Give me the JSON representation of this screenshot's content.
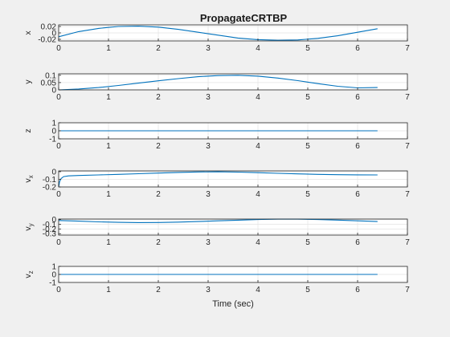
{
  "chart_data": {
    "type": "line",
    "title": "PropagateCRTBP",
    "xlabel": "Time (sec)",
    "xlim": [
      0,
      7
    ],
    "xticks": [
      "0",
      "1",
      "2",
      "3",
      "4",
      "5",
      "6",
      "7"
    ],
    "grid": true,
    "line_color": "#0072bd",
    "panels": [
      {
        "ylabel": "x",
        "ylim": [
          -0.025,
          0.025
        ],
        "yticks": [
          {
            "value": 0.02,
            "label": "0.02"
          },
          {
            "value": 0,
            "label": "0"
          },
          {
            "value": -0.02,
            "label": "-0.02"
          }
        ],
        "x": [
          0,
          0.4,
          0.8,
          1.2,
          1.6,
          2.0,
          2.4,
          2.8,
          3.2,
          3.6,
          4.0,
          4.4,
          4.8,
          5.2,
          5.6,
          6.0,
          6.4
        ],
        "y": [
          -0.012,
          0.004,
          0.014,
          0.02,
          0.021,
          0.018,
          0.011,
          0.002,
          -0.007,
          -0.016,
          -0.021,
          -0.023,
          -0.022,
          -0.017,
          -0.009,
          0.002,
          0.013
        ]
      },
      {
        "ylabel": "y",
        "ylim": [
          0,
          0.11
        ],
        "yticks": [
          {
            "value": 0.1,
            "label": "0.1"
          },
          {
            "value": 0.05,
            "label": "0.05"
          },
          {
            "value": 0,
            "label": "0"
          }
        ],
        "x": [
          0,
          0.4,
          0.8,
          1.2,
          1.6,
          2.0,
          2.4,
          2.8,
          3.2,
          3.6,
          4.0,
          4.4,
          4.8,
          5.2,
          5.6,
          6.0,
          6.4
        ],
        "y": [
          0,
          0.006,
          0.016,
          0.03,
          0.046,
          0.062,
          0.077,
          0.09,
          0.098,
          0.1,
          0.094,
          0.081,
          0.063,
          0.043,
          0.025,
          0.014,
          0.016
        ]
      },
      {
        "ylabel": "z",
        "ylim": [
          -1,
          1
        ],
        "yticks": [
          {
            "value": 1,
            "label": "1"
          },
          {
            "value": 0,
            "label": "0"
          },
          {
            "value": -1,
            "label": "-1"
          }
        ],
        "x": [
          0,
          6.4
        ],
        "y": [
          0,
          0
        ]
      },
      {
        "ylabel": "v",
        "ylabel_sub": "x",
        "ylim": [
          -0.2,
          0.01
        ],
        "yticks": [
          {
            "value": 0,
            "label": "0"
          },
          {
            "value": -0.1,
            "label": "-0.1"
          },
          {
            "value": -0.2,
            "label": "-0.2"
          }
        ],
        "x": [
          0,
          0.02,
          0.05,
          0.1,
          0.2,
          0.4,
          0.8,
          1.2,
          1.6,
          2.0,
          2.4,
          2.8,
          3.2,
          3.6,
          4.0,
          4.4,
          4.8,
          5.2,
          5.6,
          6.0,
          6.4
        ],
        "y": [
          -0.2,
          -0.13,
          -0.09,
          -0.065,
          -0.055,
          -0.05,
          -0.043,
          -0.035,
          -0.027,
          -0.018,
          -0.01,
          -0.004,
          -0.002,
          -0.006,
          -0.013,
          -0.021,
          -0.029,
          -0.035,
          -0.039,
          -0.041,
          -0.042
        ]
      },
      {
        "ylabel": "v",
        "ylabel_sub": "y",
        "ylim": [
          -0.33,
          0.01
        ],
        "yticks": [
          {
            "value": 0,
            "label": "0"
          },
          {
            "value": -0.1,
            "label": "-0.1"
          },
          {
            "value": -0.2,
            "label": "-0.2"
          },
          {
            "value": -0.3,
            "label": "-0.3"
          }
        ],
        "x": [
          0,
          0.4,
          0.8,
          1.2,
          1.6,
          2.0,
          2.4,
          2.8,
          3.2,
          3.6,
          4.0,
          4.4,
          4.8,
          5.2,
          5.6,
          6.0,
          6.4
        ],
        "y": [
          -0.02,
          -0.035,
          -0.05,
          -0.06,
          -0.065,
          -0.063,
          -0.055,
          -0.042,
          -0.028,
          -0.013,
          0,
          0.008,
          0.008,
          0,
          -0.012,
          -0.027,
          -0.042
        ]
      },
      {
        "ylabel": "v",
        "ylabel_sub": "z",
        "ylim": [
          -1,
          1
        ],
        "yticks": [
          {
            "value": 1,
            "label": "1"
          },
          {
            "value": 0,
            "label": "0"
          },
          {
            "value": -1,
            "label": "-1"
          }
        ],
        "x": [
          0,
          6.4
        ],
        "y": [
          0,
          0
        ]
      }
    ]
  }
}
